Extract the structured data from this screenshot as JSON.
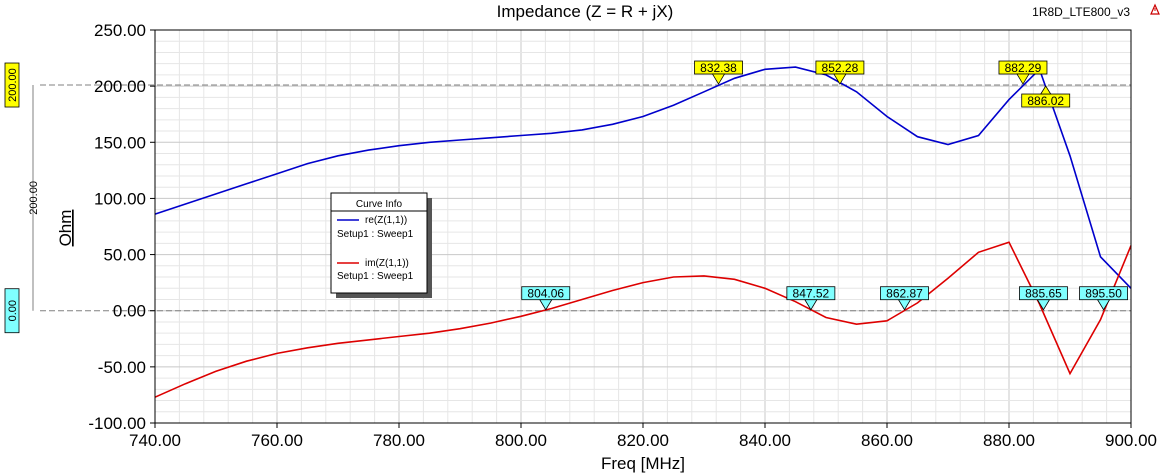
{
  "header": {
    "design_name": "1R8D_LTE800_v3"
  },
  "chart_data": {
    "type": "line",
    "title": "Impedance (Z = R + jX)",
    "xlabel": "Freq [MHz]",
    "ylabel": "Ohm",
    "xlim": [
      740,
      900
    ],
    "ylim": [
      -100,
      250
    ],
    "x_ticks": [
      "740.00",
      "760.00",
      "780.00",
      "800.00",
      "820.00",
      "840.00",
      "860.00",
      "880.00",
      "900.00"
    ],
    "y_ticks": [
      "250.00",
      "200.00",
      "150.00",
      "100.00",
      "50.00",
      "0.00",
      "-50.00",
      "-100.00"
    ],
    "grid": true,
    "legend": {
      "title": "Curve Info",
      "placement": "center-left",
      "entries": [
        {
          "name": "re(Z(1,1))",
          "sub": "Setup1 : Sweep1",
          "color": "#0000cc"
        },
        {
          "name": "im(Z(1,1))",
          "sub": "Setup1 : Sweep1",
          "color": "#dd0000"
        }
      ]
    },
    "series": [
      {
        "name": "re(Z(1,1))",
        "color": "#0000cc",
        "x": [
          740,
          745,
          750,
          755,
          760,
          765,
          770,
          775,
          780,
          785,
          790,
          795,
          800,
          805,
          810,
          815,
          820,
          825,
          830,
          835,
          840,
          845,
          850,
          855,
          860,
          865,
          870,
          875,
          880,
          885,
          890,
          895,
          900
        ],
        "y": [
          86,
          95,
          104,
          113,
          122,
          131,
          138,
          143,
          147,
          150,
          152,
          154,
          156,
          158,
          161,
          166,
          173,
          183,
          195,
          207,
          215,
          217,
          210,
          195,
          173,
          155,
          148,
          156,
          188,
          215,
          138,
          48,
          20
        ]
      },
      {
        "name": "im(Z(1,1))",
        "color": "#dd0000",
        "x": [
          740,
          745,
          750,
          755,
          760,
          765,
          770,
          775,
          780,
          785,
          790,
          795,
          800,
          805,
          810,
          815,
          820,
          825,
          830,
          835,
          840,
          845,
          850,
          855,
          860,
          865,
          870,
          875,
          880,
          885,
          890,
          895,
          900
        ],
        "y": [
          -77,
          -65,
          -54,
          -45,
          -38,
          -33,
          -29,
          -26,
          -23,
          -20,
          -16,
          -11,
          -5,
          2,
          10,
          18,
          25,
          30,
          31,
          28,
          20,
          8,
          -6,
          -12,
          -9,
          7,
          29,
          52,
          61,
          6,
          -56,
          -8,
          58
        ]
      }
    ],
    "markers": [
      {
        "label": "832.38",
        "x": 832.38,
        "y": 201,
        "color": "#ffff00"
      },
      {
        "label": "852.28",
        "x": 852.28,
        "y": 201,
        "color": "#ffff00"
      },
      {
        "label": "882.29",
        "x": 882.29,
        "y": 201,
        "color": "#ffff00"
      },
      {
        "label": "886.02",
        "x": 886.02,
        "y": 201,
        "color": "#ffff00",
        "below": true
      },
      {
        "label": "804.06",
        "x": 804.06,
        "y": 0,
        "color": "#80ffff"
      },
      {
        "label": "847.52",
        "x": 847.52,
        "y": 0,
        "color": "#80ffff"
      },
      {
        "label": "862.87",
        "x": 862.87,
        "y": 0,
        "color": "#80ffff"
      },
      {
        "label": "885.65",
        "x": 885.65,
        "y": 0,
        "color": "#80ffff"
      },
      {
        "label": "895.50",
        "x": 895.5,
        "y": 0,
        "color": "#80ffff"
      }
    ],
    "reference_lines": [
      {
        "y": 201,
        "label": "200.00",
        "color": "#ffff00"
      },
      {
        "y": 0,
        "label": "0.00",
        "color": "#80ffff"
      }
    ],
    "span_label": "200.00"
  }
}
